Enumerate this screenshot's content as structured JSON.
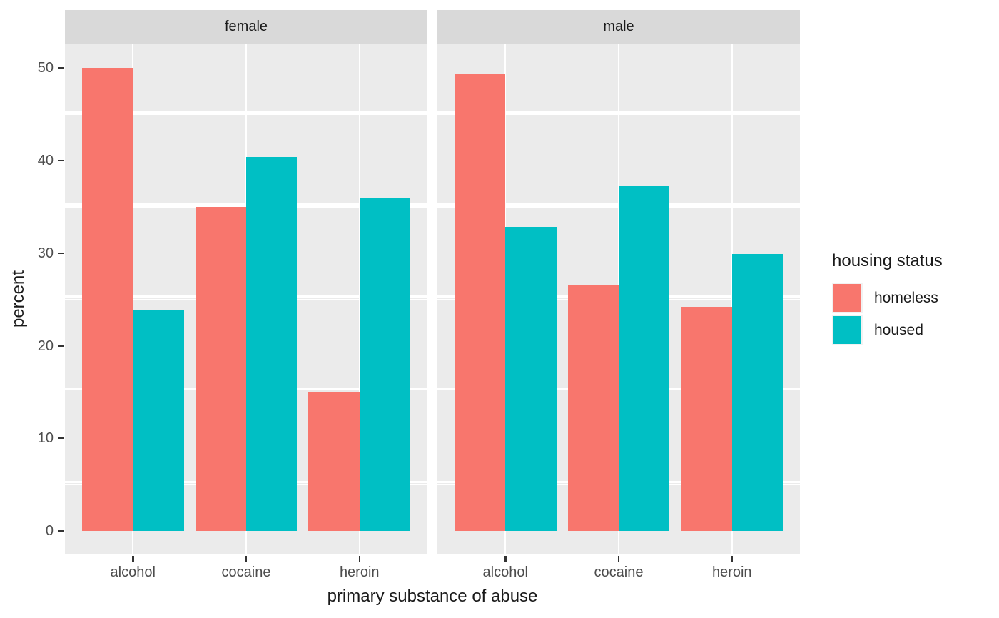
{
  "chart_data": {
    "type": "bar",
    "subtype": "dodged-faceted",
    "title": "",
    "xlabel": "primary substance of abuse",
    "ylabel": "percent",
    "categories": [
      "alcohol",
      "cocaine",
      "heroin"
    ],
    "facets": [
      {
        "label": "female",
        "series": [
          {
            "name": "homeless",
            "values": [
              50.0,
              35.0,
              15.0
            ]
          },
          {
            "name": "housed",
            "values": [
              23.9,
              40.4,
              35.9
            ]
          }
        ]
      },
      {
        "label": "male",
        "series": [
          {
            "name": "homeless",
            "values": [
              49.3,
              26.6,
              24.2
            ]
          },
          {
            "name": "housed",
            "values": [
              32.8,
              37.3,
              29.9
            ]
          }
        ]
      }
    ],
    "y_ticks": [
      0,
      10,
      20,
      30,
      40,
      50
    ],
    "y_minor_ticks": [
      5,
      15,
      25,
      35,
      45
    ],
    "ylim_display": [
      -2.55,
      52.65
    ],
    "grid": true,
    "legend_position": "right",
    "legend": {
      "title": "housing status",
      "items": [
        {
          "label": "homeless",
          "color": "#F8766D"
        },
        {
          "label": "housed",
          "color": "#00BFC4"
        }
      ]
    },
    "colors": {
      "homeless": "#F8766D",
      "housed": "#00BFC4",
      "panel_background": "#EBEBEB",
      "strip_background": "#D9D9D9",
      "gridline": "#FFFFFF",
      "tick_label": "#4D4D4D",
      "axis_title": "#1A1A1A"
    }
  }
}
